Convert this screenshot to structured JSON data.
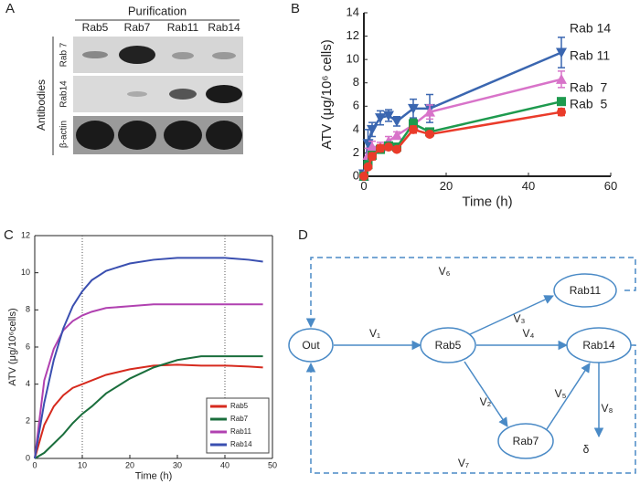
{
  "panel_labels": [
    "A",
    "B",
    "C",
    "D"
  ],
  "blot": {
    "title": "Purification",
    "columns": [
      "Rab5",
      "Rab7",
      "Rab11",
      "Rab14"
    ],
    "side_label": "Antibodies",
    "rows": [
      "Rab 7",
      "Rab14",
      "β-actin"
    ]
  },
  "chart_data": [
    {
      "type": "line",
      "xlabel": "Time (h)",
      "ylabel": "ATV (μg/10⁶ cells)",
      "x": [
        0,
        1,
        2,
        4,
        6,
        8,
        12,
        16,
        48
      ],
      "xlim": [
        0,
        60
      ],
      "xticks": [
        0,
        20,
        40,
        60
      ],
      "ylim": [
        0,
        14
      ],
      "yticks": [
        0,
        2,
        4,
        6,
        8,
        10,
        12,
        14
      ],
      "legend": "line-end",
      "frame": "axes",
      "series": [
        {
          "name": "Rab 14",
          "color": "#3a66b0",
          "marker": "triangle-down",
          "values": [
            0.2,
            2.8,
            4.0,
            5.0,
            5.2,
            4.7,
            5.8,
            5.8,
            10.6
          ],
          "errors": [
            0.2,
            1.2,
            0.6,
            0.6,
            0.5,
            0.4,
            0.8,
            1.2,
            1.3
          ]
        },
        {
          "name": "Rab 11",
          "color": "#d873c9",
          "marker": "triangle-up",
          "values": [
            0,
            1.8,
            2.5,
            2.5,
            3.0,
            3.5,
            4.4,
            5.5,
            8.3
          ],
          "errors": [
            0.1,
            0.6,
            0.5,
            0.4,
            0.4,
            0.3,
            0.5,
            0.6,
            0.7
          ]
        },
        {
          "name": "Rab  7",
          "color": "#1e9a4e",
          "marker": "square",
          "values": [
            0,
            1.0,
            1.8,
            2.3,
            2.6,
            2.5,
            4.5,
            3.8,
            6.4
          ],
          "errors": [
            0.1,
            0.3,
            0.3,
            0.3,
            0.3,
            0.2,
            0.4,
            0.3,
            0.3
          ]
        },
        {
          "name": "Rab  5",
          "color": "#ea3b2a",
          "marker": "circle",
          "values": [
            0,
            0.8,
            1.7,
            2.4,
            2.5,
            2.3,
            4.0,
            3.6,
            5.5
          ],
          "errors": [
            0.1,
            0.2,
            0.3,
            0.3,
            0.2,
            0.2,
            0.3,
            0.2,
            0.3
          ]
        }
      ]
    },
    {
      "type": "line",
      "xlabel": "Time (h)",
      "ylabel": "ATV (μg/10⁶cells)",
      "x": [
        0,
        2,
        4,
        6,
        8,
        10,
        12,
        15,
        20,
        25,
        30,
        35,
        40,
        45,
        48
      ],
      "xlim": [
        0,
        50
      ],
      "xticks": [
        0,
        10,
        20,
        30,
        40,
        50
      ],
      "ylim": [
        0,
        12
      ],
      "yticks": [
        0,
        2,
        4,
        6,
        8,
        10,
        12
      ],
      "vlines": [
        10,
        40
      ],
      "legend": "lower right",
      "frame": "box",
      "series": [
        {
          "name": "Rab5",
          "color": "#d62a1e",
          "values": [
            0,
            1.8,
            2.8,
            3.4,
            3.8,
            4.0,
            4.2,
            4.5,
            4.8,
            5.0,
            5.05,
            5.0,
            5.0,
            4.95,
            4.9
          ]
        },
        {
          "name": "Rab7",
          "color": "#1a6e3c",
          "values": [
            0,
            0.3,
            0.8,
            1.3,
            1.9,
            2.4,
            2.8,
            3.5,
            4.3,
            4.9,
            5.3,
            5.5,
            5.5,
            5.5,
            5.5
          ]
        },
        {
          "name": "Rab11",
          "color": "#b041b0",
          "values": [
            0,
            4.2,
            5.9,
            6.9,
            7.4,
            7.7,
            7.9,
            8.1,
            8.2,
            8.3,
            8.3,
            8.3,
            8.3,
            8.3,
            8.3
          ]
        },
        {
          "name": "Rab14",
          "color": "#3a4fb0",
          "values": [
            0,
            3.0,
            5.3,
            7.0,
            8.2,
            9.0,
            9.6,
            10.1,
            10.5,
            10.7,
            10.8,
            10.8,
            10.8,
            10.7,
            10.6
          ]
        }
      ]
    }
  ],
  "diagram": {
    "nodes": [
      "Out",
      "Rab5",
      "Rab11",
      "Rab14",
      "Rab7"
    ],
    "edges": [
      "V₁",
      "V₂",
      "V₃",
      "V₄",
      "V₅",
      "V₆",
      "V₇",
      "V₈"
    ],
    "sink": "δ"
  }
}
